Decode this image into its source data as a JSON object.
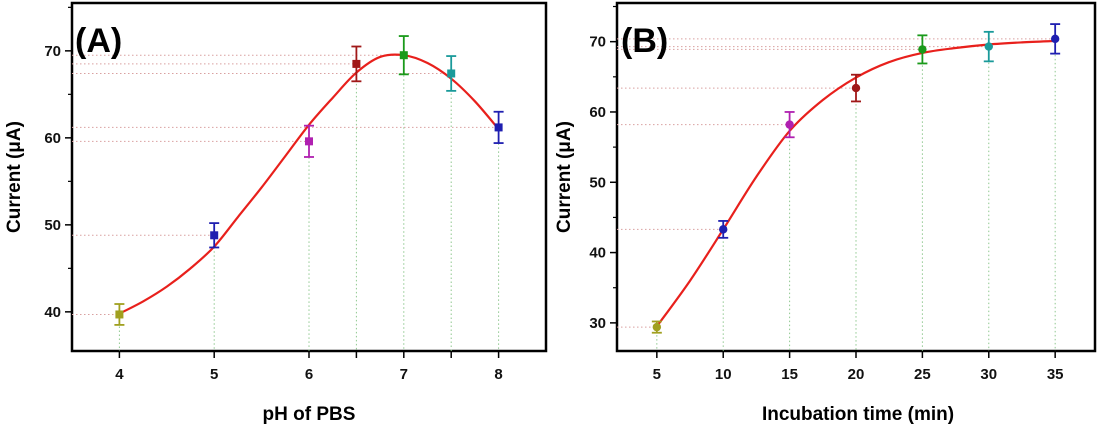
{
  "chart_data": [
    {
      "type": "scatter",
      "panel_label": "(A)",
      "xlabel": "pH of PBS",
      "ylabel": "Current (μA)",
      "xlim": [
        3.5,
        8.5
      ],
      "ylim": [
        35.5,
        75.5
      ],
      "xticks": [
        4,
        5,
        6,
        6.5,
        7,
        7.5,
        8
      ],
      "xtick_labels": [
        "4",
        "5",
        "6",
        "",
        "7",
        "",
        "8"
      ],
      "yticks": [
        40,
        50,
        60,
        70
      ],
      "yminor": [
        45,
        55,
        65,
        75
      ],
      "fit_color": "#e8201c",
      "fit_curve": {
        "x": [
          4.0,
          4.25,
          4.5,
          4.75,
          5.0,
          5.25,
          5.5,
          5.75,
          6.0,
          6.25,
          6.5,
          6.75,
          7.0,
          7.25,
          7.5,
          7.75,
          8.0
        ],
        "y": [
          39.8,
          41.2,
          42.9,
          45.0,
          47.5,
          50.9,
          54.3,
          57.9,
          61.5,
          64.6,
          67.5,
          69.3,
          69.5,
          68.6,
          66.8,
          64.2,
          61.0
        ]
      },
      "points": [
        {
          "x": 4.0,
          "y": 39.7,
          "err": 1.2,
          "color": "#a0a020"
        },
        {
          "x": 5.0,
          "y": 48.8,
          "err": 1.4,
          "color": "#1f1fb0"
        },
        {
          "x": 6.0,
          "y": 59.6,
          "err": 1.8,
          "color": "#b020b0"
        },
        {
          "x": 6.5,
          "y": 68.5,
          "err": 2.0,
          "color": "#a01818"
        },
        {
          "x": 7.0,
          "y": 69.5,
          "err": 2.2,
          "color": "#1a9a1a"
        },
        {
          "x": 7.5,
          "y": 67.4,
          "err": 2.0,
          "color": "#1a9a9a"
        },
        {
          "x": 8.0,
          "y": 61.2,
          "err": 1.8,
          "color": "#1f1fb0"
        }
      ]
    },
    {
      "type": "scatter",
      "panel_label": "(B)",
      "xlabel": "Incubation time (min)",
      "ylabel": "Current (μA)",
      "xlim": [
        2,
        38
      ],
      "ylim": [
        26,
        75.5
      ],
      "xticks": [
        5,
        10,
        15,
        20,
        25,
        30,
        35
      ],
      "xtick_labels": [
        "5",
        "10",
        "15",
        "20",
        "25",
        "30",
        "35"
      ],
      "yticks": [
        30,
        40,
        50,
        60,
        70
      ],
      "yminor": [
        35,
        45,
        55,
        65,
        75
      ],
      "fit_color": "#e8201c",
      "fit_curve": {
        "x": [
          5,
          7.5,
          10,
          12.5,
          15,
          17.5,
          20,
          22.5,
          25,
          27.5,
          30,
          32.5,
          35
        ],
        "y": [
          29.5,
          36.0,
          43.3,
          50.8,
          57.3,
          61.7,
          64.9,
          67.1,
          68.4,
          69.1,
          69.6,
          69.9,
          70.1
        ]
      },
      "points": [
        {
          "x": 5,
          "y": 29.4,
          "err": 0.8,
          "color": "#a0a020"
        },
        {
          "x": 10,
          "y": 43.3,
          "err": 1.2,
          "color": "#1f1fb0"
        },
        {
          "x": 15,
          "y": 58.2,
          "err": 1.8,
          "color": "#b020b0"
        },
        {
          "x": 20,
          "y": 63.4,
          "err": 1.9,
          "color": "#a01818"
        },
        {
          "x": 25,
          "y": 68.9,
          "err": 2.0,
          "color": "#1a9a1a"
        },
        {
          "x": 30,
          "y": 69.3,
          "err": 2.1,
          "color": "#1a9a9a"
        },
        {
          "x": 35,
          "y": 70.4,
          "err": 2.1,
          "color": "#1f1fb0"
        }
      ]
    }
  ]
}
